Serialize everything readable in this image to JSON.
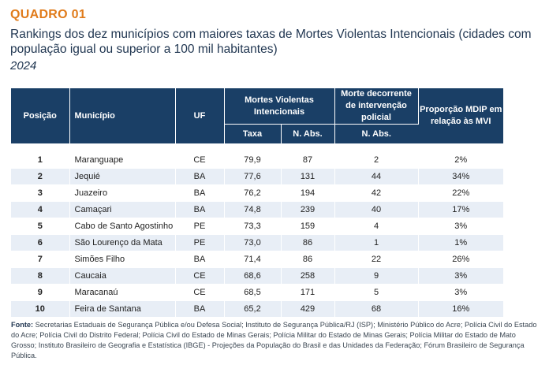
{
  "header": {
    "quadro": "QUADRO 01",
    "title": "Rankings dos dez municípios com maiores taxas de Mortes Violentas Intencionais (cidades com população igual ou superior a 100 mil habitantes)",
    "year": "2024"
  },
  "table": {
    "headers": {
      "posicao": "Posição",
      "municipio": "Município",
      "uf": "UF",
      "mvi": "Mortes Violentas Intencionais",
      "mdip": "Morte decorrente de intervenção policial",
      "proporcao": "Proporção MDIP em relação às MVI",
      "taxa": "Taxa",
      "nabs_mvi": "N. Abs.",
      "nabs_mdip": "N. Abs."
    },
    "rows": [
      {
        "pos": "1",
        "municipio": "Maranguape",
        "uf": "CE",
        "taxa": "79,9",
        "nabs_mvi": "87",
        "nabs_mdip": "2",
        "prop": "2%"
      },
      {
        "pos": "2",
        "municipio": "Jequié",
        "uf": "BA",
        "taxa": "77,6",
        "nabs_mvi": "131",
        "nabs_mdip": "44",
        "prop": "34%"
      },
      {
        "pos": "3",
        "municipio": "Juazeiro",
        "uf": "BA",
        "taxa": "76,2",
        "nabs_mvi": "194",
        "nabs_mdip": "42",
        "prop": "22%"
      },
      {
        "pos": "4",
        "municipio": "Camaçari",
        "uf": "BA",
        "taxa": "74,8",
        "nabs_mvi": "239",
        "nabs_mdip": "40",
        "prop": "17%"
      },
      {
        "pos": "5",
        "municipio": "Cabo de Santo Agostinho",
        "uf": "PE",
        "taxa": "73,3",
        "nabs_mvi": "159",
        "nabs_mdip": "4",
        "prop": "3%"
      },
      {
        "pos": "6",
        "municipio": "São Lourenço da Mata",
        "uf": "PE",
        "taxa": "73,0",
        "nabs_mvi": "86",
        "nabs_mdip": "1",
        "prop": "1%"
      },
      {
        "pos": "7",
        "municipio": "Simões Filho",
        "uf": "BA",
        "taxa": "71,4",
        "nabs_mvi": "86",
        "nabs_mdip": "22",
        "prop": "26%"
      },
      {
        "pos": "8",
        "municipio": "Caucaia",
        "uf": "CE",
        "taxa": "68,6",
        "nabs_mvi": "258",
        "nabs_mdip": "9",
        "prop": "3%"
      },
      {
        "pos": "9",
        "municipio": "Maracanaú",
        "uf": "CE",
        "taxa": "68,5",
        "nabs_mvi": "171",
        "nabs_mdip": "5",
        "prop": "3%"
      },
      {
        "pos": "10",
        "municipio": "Feira de Santana",
        "uf": "BA",
        "taxa": "65,2",
        "nabs_mvi": "429",
        "nabs_mdip": "68",
        "prop": "16%"
      }
    ]
  },
  "source": {
    "label": "Fonte:",
    "text": " Secretarias Estaduais de Segurança Pública e/ou Defesa Social; Instituto de Segurança Pública/RJ (ISP); Ministério Público do Acre; Polícia Civil do Estado do Acre; Polícia Civil do Distrito Federal; Polícia Civil do Estado de Minas Gerais; Polícia Militar do Estado de Minas Gerais; Polícia Militar do Estado de Mato Grosso; Instituto Brasileiro de Geografia e Estatística (IBGE) - Projeções da População do Brasil e das Unidades da Federação; Fórum Brasileiro de Segurança Pública."
  },
  "colors": {
    "accent": "#e07b1a",
    "header_bg": "#1a3f66",
    "row_stripe": "#e8eef6"
  }
}
